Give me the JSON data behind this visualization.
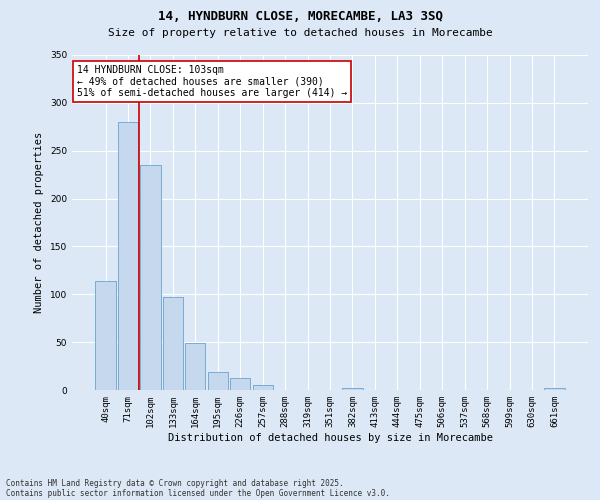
{
  "title": "14, HYNDBURN CLOSE, MORECAMBE, LA3 3SQ",
  "subtitle": "Size of property relative to detached houses in Morecambe",
  "xlabel": "Distribution of detached houses by size in Morecambe",
  "ylabel": "Number of detached properties",
  "categories": [
    "40sqm",
    "71sqm",
    "102sqm",
    "133sqm",
    "164sqm",
    "195sqm",
    "226sqm",
    "257sqm",
    "288sqm",
    "319sqm",
    "351sqm",
    "382sqm",
    "413sqm",
    "444sqm",
    "475sqm",
    "506sqm",
    "537sqm",
    "568sqm",
    "599sqm",
    "630sqm",
    "661sqm"
  ],
  "values": [
    114,
    280,
    235,
    97,
    49,
    19,
    13,
    5,
    0,
    0,
    0,
    2,
    0,
    0,
    0,
    0,
    0,
    0,
    0,
    0,
    2
  ],
  "bar_color": "#c5d8ed",
  "bar_edge_color": "#6ba3cc",
  "vline_index": 2,
  "vline_color": "#cc0000",
  "annotation_text": "14 HYNDBURN CLOSE: 103sqm\n← 49% of detached houses are smaller (390)\n51% of semi-detached houses are larger (414) →",
  "annotation_box_color": "#ffffff",
  "annotation_box_edge": "#cc0000",
  "ylim": [
    0,
    350
  ],
  "yticks": [
    0,
    50,
    100,
    150,
    200,
    250,
    300,
    350
  ],
  "background_color": "#dce8f5",
  "grid_color": "#ffffff",
  "footer_line1": "Contains HM Land Registry data © Crown copyright and database right 2025.",
  "footer_line2": "Contains public sector information licensed under the Open Government Licence v3.0.",
  "title_fontsize": 9,
  "subtitle_fontsize": 8,
  "axis_label_fontsize": 7.5,
  "tick_fontsize": 6.5,
  "annotation_fontsize": 7,
  "footer_fontsize": 5.5
}
